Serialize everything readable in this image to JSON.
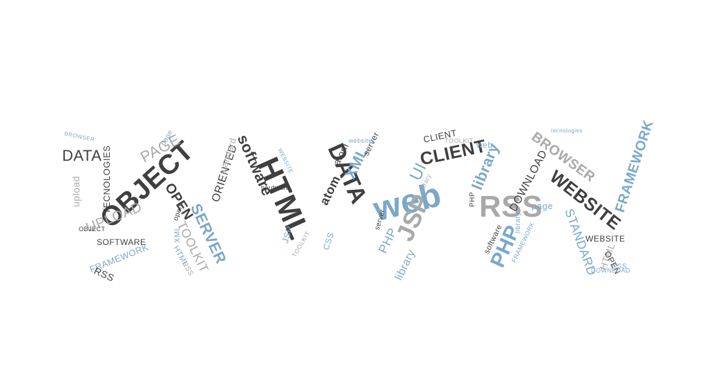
{
  "cloud": {
    "colors": {
      "dark": "#3f3f3f",
      "gray": "#a9a9a9",
      "blue": "#7ba8c9",
      "lightblue": "#96c0df"
    },
    "words": {
      "object": "OBJECT",
      "data": "DATA",
      "page": "PAGE",
      "upload": "UPLOAD",
      "tecnologies": "TECNOLOGIES",
      "software_caps": "SOFTWARE",
      "framework_caps": "FRAMEWORK",
      "rss_caps": "RSS",
      "object_small": "OBJECT",
      "browser_left": "BROWSER",
      "open": "OPEN",
      "oriented": "ORIENTED",
      "server": "SERVER",
      "toolkit": "TOOLKIT",
      "standard": "standard",
      "software": "software",
      "html": "HTML",
      "website_mid": "WEBSITE",
      "data_mid": "DATA",
      "xml": "XML",
      "atom": "atom",
      "ui": "UI",
      "web": "web",
      "jsp": "JSP",
      "php": "PHP",
      "library": "library",
      "client": "CLIENT",
      "rss_mid": "RSS",
      "download": "DOWNLOAD",
      "page_right": "page",
      "php_right": "PHP",
      "browser_right": "BROWSER",
      "website_right": "WEBSITE",
      "framework_right": "FRAMEWORK",
      "standard_right": "STANDARD",
      "website_small": "WEBSITE",
      "html_right": "HTML",
      "open_right": "OPEN",
      "css": "CSS",
      "download_small": "DOWNLOAD",
      "web_small": "web",
      "toolkit_small": "TOOLKIT",
      "client_small": "CLIENT",
      "hardware": "hardware",
      "upload_small": "upload",
      "server_small": "server",
      "library_small": "library",
      "xml_small": "XML",
      "css_small": "CSS",
      "php_small": "PHP",
      "jsp_small": "JSP",
      "framework_small": "FRAMEWORK",
      "software_small": "software",
      "website_tiny": "website",
      "toolkit_tiny": "TOOLKIT",
      "rss_small": "RSS",
      "tecnologies_small": "tecnologies",
      "html_small": "HTML",
      "page_small": "page",
      "open_small": "open"
    }
  }
}
